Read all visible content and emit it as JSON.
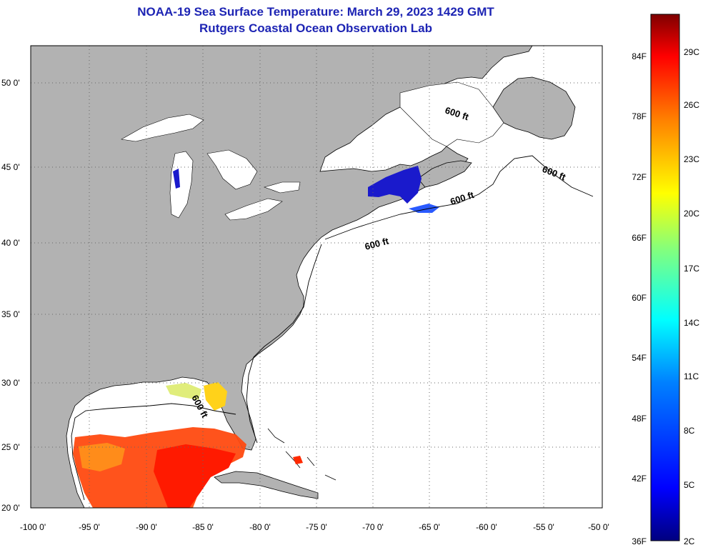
{
  "title": {
    "line1": "NOAA-19 Sea Surface Temperature:  March 29, 2023 1429 GMT",
    "line2": "Rutgers Coastal Ocean Observation Lab"
  },
  "axes": {
    "lon_labels": [
      "-100 0'",
      "-95 0'",
      "-90 0'",
      "-85 0'",
      "-80 0'",
      "-75 0'",
      "-70 0'",
      "-65 0'",
      "-60 0'",
      "-55 0'",
      "-50 0'"
    ],
    "lat_labels": [
      "20 0'",
      "25 0'",
      "30 0'",
      "35 0'",
      "40 0'",
      "45 0'",
      "50 0'"
    ],
    "lon_range": [
      -100,
      -50
    ],
    "lat_range": [
      20,
      52.5
    ]
  },
  "depth_contour": {
    "label": "600 ft",
    "placements": [
      "Gulf of Mexico",
      "Mid-Atlantic shelf",
      "Gulf of Maine",
      "Grand Banks"
    ]
  },
  "colorbar": {
    "fahrenheit_labels": [
      "84F",
      "78F",
      "72F",
      "66F",
      "60F",
      "54F",
      "48F",
      "42F",
      "36F"
    ],
    "celsius_labels": [
      "29C",
      "26C",
      "23C",
      "20C",
      "17C",
      "14C",
      "11C",
      "8C",
      "5C",
      "2C"
    ],
    "stops": [
      "#00007f",
      "#0000ff",
      "#0080ff",
      "#00ffff",
      "#80ff80",
      "#ffff00",
      "#ff8000",
      "#ff0000",
      "#7f0000"
    ]
  },
  "colors": {
    "land": "#b2b2b2",
    "ocean_no_data": "#ffffff",
    "title": "#1d24b4",
    "warm_gulf": "#ff3300",
    "cold_gulf_of_maine": "#1a1acc"
  }
}
